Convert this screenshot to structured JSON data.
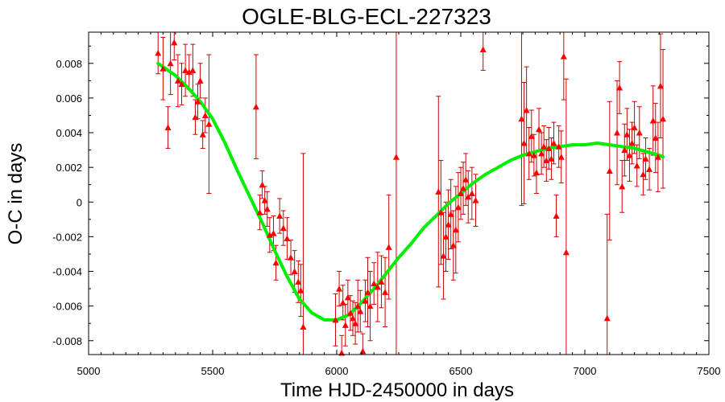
{
  "chart_data": {
    "type": "scatter",
    "title": "OGLE-BLG-ECL-227323",
    "xlabel": "Time HJD-2450000 in days",
    "ylabel": "O-C in days",
    "xlim": [
      5000,
      7500
    ],
    "ylim": [
      -0.0088,
      0.0098
    ],
    "x_ticks": [
      5000,
      5500,
      6000,
      6500,
      7000,
      7500
    ],
    "x_tick_labels": [
      "5000",
      "5500",
      "6000",
      "6500",
      "7000",
      "7500"
    ],
    "y_ticks": [
      -0.008,
      -0.006,
      -0.004,
      -0.002,
      0,
      0.002,
      0.004,
      0.006,
      0.008
    ],
    "y_tick_labels": [
      "-0.008",
      "-0.006",
      "-0.004",
      "-0.002",
      "0",
      "0.002",
      "0.004",
      "0.006",
      "0.008"
    ],
    "grid": false,
    "colors": {
      "points": "#ff0000",
      "errorbars": "#cc0000",
      "fit": "#00ee00"
    },
    "series": [
      {
        "kind": "points_with_errorbars",
        "points": [
          {
            "x": 5280,
            "y": 0.0086,
            "err": 0.0012
          },
          {
            "x": 5300,
            "y": 0.0077,
            "err": 0.0018
          },
          {
            "x": 5320,
            "y": 0.0043,
            "err": 0.0012
          },
          {
            "x": 5330,
            "y": 0.008,
            "err": 0.0018
          },
          {
            "x": 5345,
            "y": 0.0092,
            "err": 0.001
          },
          {
            "x": 5360,
            "y": 0.007,
            "err": 0.0015
          },
          {
            "x": 5375,
            "y": 0.0068,
            "err": 0.0012
          },
          {
            "x": 5390,
            "y": 0.0076,
            "err": 0.0015
          },
          {
            "x": 5405,
            "y": 0.0075,
            "err": 0.001
          },
          {
            "x": 5420,
            "y": 0.0076,
            "err": 0.0015
          },
          {
            "x": 5430,
            "y": 0.0049,
            "err": 0.001
          },
          {
            "x": 5440,
            "y": 0.0058,
            "err": 0.001
          },
          {
            "x": 5450,
            "y": 0.007,
            "err": 0.001
          },
          {
            "x": 5460,
            "y": 0.0039,
            "err": 0.0008
          },
          {
            "x": 5470,
            "y": 0.005,
            "err": 0.001
          },
          {
            "x": 5485,
            "y": 0.0045,
            "err": 0.004
          },
          {
            "x": 5675,
            "y": 0.0055,
            "err": 0.003
          },
          {
            "x": 5690,
            "y": -0.0006,
            "err": 0.001
          },
          {
            "x": 5700,
            "y": 0.001,
            "err": 0.0008
          },
          {
            "x": 5710,
            "y": 0.0001,
            "err": 0.0008
          },
          {
            "x": 5720,
            "y": -0.0004,
            "err": 0.001
          },
          {
            "x": 5730,
            "y": -0.0019,
            "err": 0.001
          },
          {
            "x": 5745,
            "y": -0.0018,
            "err": 0.001
          },
          {
            "x": 5755,
            "y": -0.0035,
            "err": 0.001
          },
          {
            "x": 5770,
            "y": -0.0008,
            "err": 0.001
          },
          {
            "x": 5785,
            "y": -0.0015,
            "err": 0.001
          },
          {
            "x": 5800,
            "y": -0.0021,
            "err": 0.0012
          },
          {
            "x": 5815,
            "y": -0.0032,
            "err": 0.001
          },
          {
            "x": 5830,
            "y": -0.004,
            "err": 0.0012
          },
          {
            "x": 5845,
            "y": -0.0046,
            "err": 0.0012
          },
          {
            "x": 5855,
            "y": -0.0051,
            "err": 0.0015
          },
          {
            "x": 5865,
            "y": -0.0072,
            "err": 0.01
          },
          {
            "x": 5995,
            "y": -0.0068,
            "err": 0.0015
          },
          {
            "x": 6010,
            "y": -0.005,
            "err": 0.001
          },
          {
            "x": 6020,
            "y": -0.0087,
            "err": 0.001
          },
          {
            "x": 6025,
            "y": -0.0058,
            "err": 0.001
          },
          {
            "x": 6035,
            "y": -0.0071,
            "err": 0.0012
          },
          {
            "x": 6045,
            "y": -0.0055,
            "err": 0.001
          },
          {
            "x": 6055,
            "y": -0.0064,
            "err": 0.001
          },
          {
            "x": 6065,
            "y": -0.0067,
            "err": 0.001
          },
          {
            "x": 6075,
            "y": -0.007,
            "err": 0.0012
          },
          {
            "x": 6085,
            "y": -0.006,
            "err": 0.0015
          },
          {
            "x": 6095,
            "y": -0.0063,
            "err": 0.0012
          },
          {
            "x": 6105,
            "y": -0.0086,
            "err": 0.001
          },
          {
            "x": 6115,
            "y": -0.0057,
            "err": 0.0012
          },
          {
            "x": 6125,
            "y": -0.0052,
            "err": 0.002
          },
          {
            "x": 6135,
            "y": -0.006,
            "err": 0.002
          },
          {
            "x": 6150,
            "y": -0.0047,
            "err": 0.0012
          },
          {
            "x": 6165,
            "y": -0.0049,
            "err": 0.002
          },
          {
            "x": 6180,
            "y": -0.0046,
            "err": 0.0015
          },
          {
            "x": 6195,
            "y": -0.0052,
            "err": 0.002
          },
          {
            "x": 6210,
            "y": -0.0026,
            "err": 0.003
          },
          {
            "x": 6240,
            "y": 0.0026,
            "err": 0.013
          },
          {
            "x": 6410,
            "y": 0.0006,
            "err": 0.0055
          },
          {
            "x": 6420,
            "y": -0.0006,
            "err": 0.003
          },
          {
            "x": 6430,
            "y": -0.0031,
            "err": 0.0025
          },
          {
            "x": 6440,
            "y": -0.002,
            "err": 0.002
          },
          {
            "x": 6450,
            "y": -0.0013,
            "err": 0.002
          },
          {
            "x": 6460,
            "y": -0.0007,
            "err": 0.002
          },
          {
            "x": 6470,
            "y": -0.0025,
            "err": 0.002
          },
          {
            "x": 6480,
            "y": -0.0016,
            "err": 0.0025
          },
          {
            "x": 6490,
            "y": -0.0003,
            "err": 0.002
          },
          {
            "x": 6500,
            "y": 0.0005,
            "err": 0.0015
          },
          {
            "x": 6510,
            "y": 0.0008,
            "err": 0.0015
          },
          {
            "x": 6520,
            "y": 0.0013,
            "err": 0.0015
          },
          {
            "x": 6530,
            "y": 0.0003,
            "err": 0.0015
          },
          {
            "x": 6545,
            "y": 0.0005,
            "err": 0.0015
          },
          {
            "x": 6560,
            "y": 0.0001,
            "err": 0.0015
          },
          {
            "x": 6590,
            "y": 0.0088,
            "err": 0.0012
          },
          {
            "x": 6745,
            "y": 0.0048,
            "err": 0.005
          },
          {
            "x": 6755,
            "y": 0.0034,
            "err": 0.0035
          },
          {
            "x": 6765,
            "y": 0.0053,
            "err": 0.0025
          },
          {
            "x": 6775,
            "y": 0.0028,
            "err": 0.0015
          },
          {
            "x": 6785,
            "y": 0.0038,
            "err": 0.0015
          },
          {
            "x": 6795,
            "y": 0.0027,
            "err": 0.0012
          },
          {
            "x": 6805,
            "y": 0.0017,
            "err": 0.0012
          },
          {
            "x": 6815,
            "y": 0.0042,
            "err": 0.0012
          },
          {
            "x": 6825,
            "y": 0.0028,
            "err": 0.0012
          },
          {
            "x": 6835,
            "y": 0.0032,
            "err": 0.0012
          },
          {
            "x": 6845,
            "y": 0.0024,
            "err": 0.0012
          },
          {
            "x": 6855,
            "y": 0.0031,
            "err": 0.0012
          },
          {
            "x": 6865,
            "y": 0.0025,
            "err": 0.0012
          },
          {
            "x": 6875,
            "y": 0.0034,
            "err": 0.0012
          },
          {
            "x": 6885,
            "y": -0.0008,
            "err": 0.0012
          },
          {
            "x": 6895,
            "y": 0.0032,
            "err": 0.0012
          },
          {
            "x": 6905,
            "y": 0.0026,
            "err": 0.0015
          },
          {
            "x": 6915,
            "y": 0.0084,
            "err": 0.0025
          },
          {
            "x": 6925,
            "y": -0.0029,
            "err": 0.01
          },
          {
            "x": 7090,
            "y": -0.0067,
            "err": 0.006
          },
          {
            "x": 7100,
            "y": 0.0018,
            "err": 0.004
          },
          {
            "x": 7130,
            "y": 0.004,
            "err": 0.003
          },
          {
            "x": 7140,
            "y": 0.0066,
            "err": 0.0015
          },
          {
            "x": 7150,
            "y": 0.0009,
            "err": 0.0015
          },
          {
            "x": 7160,
            "y": 0.003,
            "err": 0.0015
          },
          {
            "x": 7170,
            "y": 0.0039,
            "err": 0.0015
          },
          {
            "x": 7180,
            "y": 0.0027,
            "err": 0.0015
          },
          {
            "x": 7190,
            "y": 0.0034,
            "err": 0.0012
          },
          {
            "x": 7200,
            "y": 0.0043,
            "err": 0.0015
          },
          {
            "x": 7210,
            "y": 0.0021,
            "err": 0.0012
          },
          {
            "x": 7220,
            "y": 0.004,
            "err": 0.0015
          },
          {
            "x": 7235,
            "y": 0.0016,
            "err": 0.0012
          },
          {
            "x": 7245,
            "y": 0.0025,
            "err": 0.0012
          },
          {
            "x": 7260,
            "y": 0.0019,
            "err": 0.0012
          },
          {
            "x": 7275,
            "y": 0.0047,
            "err": 0.002
          },
          {
            "x": 7285,
            "y": 0.0037,
            "err": 0.002
          },
          {
            "x": 7295,
            "y": 0.0026,
            "err": 0.002
          },
          {
            "x": 7305,
            "y": 0.0067,
            "err": 0.003
          },
          {
            "x": 7315,
            "y": 0.0048,
            "err": 0.004
          }
        ]
      },
      {
        "kind": "fit_curve",
        "x": [
          5280,
          5350,
          5400,
          5450,
          5500,
          5550,
          5600,
          5650,
          5700,
          5750,
          5800,
          5850,
          5900,
          5950,
          6000,
          6050,
          6100,
          6150,
          6200,
          6250,
          6300,
          6350,
          6400,
          6450,
          6500,
          6550,
          6600,
          6650,
          6700,
          6750,
          6800,
          6850,
          6900,
          6950,
          7000,
          7050,
          7100,
          7150,
          7200,
          7250,
          7300,
          7315
        ],
        "y": [
          0.008,
          0.0073,
          0.0066,
          0.0058,
          0.0048,
          0.0034,
          0.0018,
          0.0003,
          -0.0012,
          -0.0028,
          -0.0043,
          -0.0056,
          -0.0064,
          -0.0068,
          -0.0068,
          -0.0065,
          -0.0058,
          -0.005,
          -0.0041,
          -0.0032,
          -0.0024,
          -0.0015,
          -0.0008,
          -0.0001,
          0.0005,
          0.0011,
          0.0016,
          0.002,
          0.0024,
          0.0027,
          0.0029,
          0.0031,
          0.0032,
          0.0033,
          0.0033,
          0.0034,
          0.0033,
          0.0032,
          0.0031,
          0.0029,
          0.0027,
          0.0026
        ]
      }
    ]
  }
}
